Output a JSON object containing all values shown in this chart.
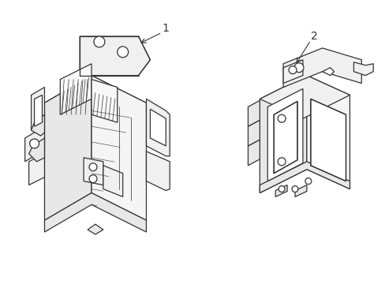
{
  "background_color": "#ffffff",
  "line_color": "#333333",
  "line_width": 0.9,
  "label1": "1",
  "label2": "2",
  "font_size": 10
}
